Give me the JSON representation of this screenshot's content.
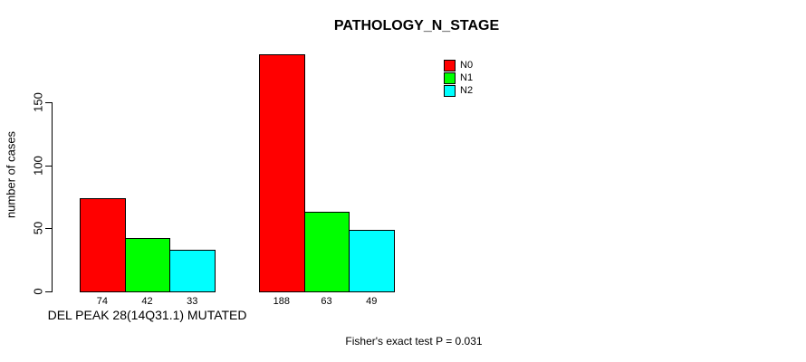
{
  "chart_data": {
    "type": "bar",
    "title": "PATHOLOGY_N_STAGE",
    "ylabel": "number of cases",
    "yticks": [
      0,
      50,
      100,
      150
    ],
    "ylim": [
      0,
      150
    ],
    "grid": false,
    "legend_position": "top-right",
    "legend": [
      {
        "label": "N0",
        "color": "#ff0000"
      },
      {
        "label": "N1",
        "color": "#00ff00"
      },
      {
        "label": "N2",
        "color": "#00ffff"
      }
    ],
    "groups": [
      {
        "label": "DEL PEAK 28(14Q31.1) MUTATED",
        "values": [
          74,
          42,
          33
        ]
      },
      {
        "label": "",
        "values": [
          188,
          63,
          49
        ]
      }
    ],
    "bar_border_color": "#000000",
    "annotation": "Fisher's exact test P = 0.031"
  }
}
